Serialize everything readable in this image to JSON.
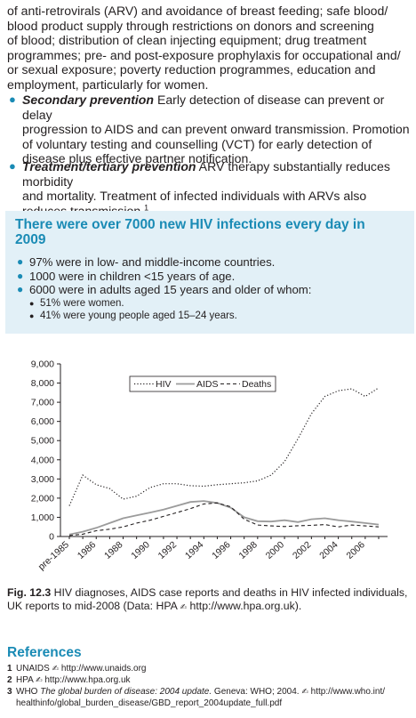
{
  "intro_lines": [
    "of anti-retrovirals (ARV) and avoidance of breast feeding; safe blood/",
    "blood product supply through restrictions on donors and screening",
    "of blood; distribution of clean injecting equipment; drug treatment",
    "programmes; pre- and post-exposure prophylaxis for occupational and/",
    "or sexual exposure; poverty reduction programmes, education and",
    "employment, particularly for women."
  ],
  "secondary": {
    "term": "Secondary prevention",
    "line1": " Early detection of disease can prevent or delay",
    "line2": "progression to AIDS and can prevent onward transmission. Promotion",
    "line3": "of voluntary testing and counselling (VCT) for early detection of",
    "line4": "disease plus effective partner notification."
  },
  "treatment": {
    "term": "Treatment/tertiary prevention",
    "line1": " ARV therapy substantially reduces morbidity",
    "line2": "and mortality. Treatment of infected individuals with ARVs also",
    "line3": "reduces transmission.",
    "sup": "1"
  },
  "box": {
    "title_line1": "There were over 7000 new HIV infections every day in",
    "title_line2": "2009",
    "items": [
      "97% were in low- and middle-income countries.",
      "1000 were in children <15 years of age.",
      "6000 were in adults aged 15 years and older of whom:"
    ],
    "subitems": [
      "51% were women.",
      "41% were young people aged 15–24 years."
    ]
  },
  "chart_data": {
    "type": "line",
    "categories": [
      "pre-1985",
      "1985",
      "1986",
      "1987",
      "1988",
      "1989",
      "1990",
      "1991",
      "1992",
      "1993",
      "1994",
      "1995",
      "1996",
      "1997",
      "1998",
      "1999",
      "2000",
      "2001",
      "2002",
      "2003",
      "2004",
      "2005",
      "2006",
      "2007"
    ],
    "x_tick_labels": [
      "pre-1985",
      "1986",
      "1988",
      "1990",
      "1992",
      "1994",
      "1996",
      "1998",
      "2000",
      "2002",
      "2004",
      "2006"
    ],
    "y_tick_labels": [
      "0",
      "1,000",
      "2,000",
      "3,000",
      "4,000",
      "5,000",
      "6,000",
      "7,000",
      "8,000",
      "9,000"
    ],
    "ylim": [
      0,
      9000
    ],
    "legend_position": "top-right",
    "series": [
      {
        "name": "HIV",
        "style": "dotted",
        "values": [
          1600,
          3200,
          2700,
          2500,
          1950,
          2100,
          2550,
          2750,
          2750,
          2650,
          2620,
          2700,
          2750,
          2800,
          2900,
          3200,
          3900,
          5100,
          6400,
          7300,
          7600,
          7700,
          7300,
          7750
        ]
      },
      {
        "name": "AIDS",
        "style": "solid",
        "values": [
          100,
          250,
          450,
          700,
          950,
          1100,
          1250,
          1400,
          1600,
          1800,
          1850,
          1750,
          1500,
          1000,
          800,
          780,
          850,
          750,
          900,
          950,
          850,
          780,
          700,
          620
        ]
      },
      {
        "name": "Deaths",
        "style": "dashed",
        "values": [
          50,
          120,
          300,
          380,
          500,
          700,
          850,
          1050,
          1250,
          1450,
          1700,
          1750,
          1550,
          900,
          600,
          550,
          520,
          560,
          580,
          620,
          500,
          600,
          550,
          500
        ]
      }
    ]
  },
  "caption": {
    "label": "Fig. 12.3",
    "text_line1": "  HIV diagnoses, AIDS case reports and deaths in HIV infected individuals,",
    "text_line2": "UK reports to mid-2008 (Data: HPA ",
    "url": "http://www.hpa.org.uk",
    "end": ")."
  },
  "references": {
    "title": "References",
    "items": [
      {
        "num": "1",
        "pre": "UNAIDS ",
        "url": "http://www.unaids.org"
      },
      {
        "num": "2",
        "pre": "HPA ",
        "url": "http://www.hpa.org.uk"
      },
      {
        "num": "3",
        "pre": "WHO ",
        "italic": "The global burden of disease: 2004 update.",
        "mid": " Geneva: WHO; 2004. ",
        "url": "http://www.who.int/",
        "cont": "healthinfo/global_burden_disease/GBD_report_2004update_full.pdf"
      }
    ]
  },
  "hand_glyph": "✍"
}
